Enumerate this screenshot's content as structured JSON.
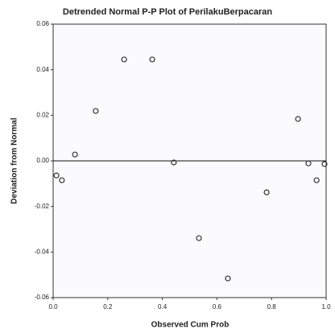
{
  "chart_data": {
    "type": "scatter",
    "title": "Detrended Normal P-P Plot of PerilakuBerpacaran",
    "x_label": "Observed Cum Prob",
    "y_label": "Deviation from Normal",
    "x": [
      0.012,
      0.032,
      0.08,
      0.156,
      0.26,
      0.363,
      0.442,
      0.534,
      0.64,
      0.782,
      0.897,
      0.935,
      0.965,
      0.994
    ],
    "values": [
      -0.0064,
      -0.0085,
      0.0028,
      0.0219,
      0.0445,
      0.0445,
      -0.0007,
      -0.0339,
      -0.0516,
      -0.0138,
      0.0184,
      -0.0011,
      -0.0085,
      -0.0014
    ],
    "color": "#333333",
    "xlim": [
      0,
      1
    ],
    "xticks": [
      {
        "value": 0,
        "label": "0.0"
      },
      0.2,
      0.4,
      0.6,
      0.8,
      {
        "value": 1,
        "label": "1.0"
      }
    ],
    "ylim": [
      -0.06,
      0.06
    ],
    "yticks": [
      -0.06,
      -0.04,
      -0.02,
      {
        "value": 0,
        "label": "0.00"
      },
      0.02,
      0.04,
      0.06
    ],
    "reference_line": 0
  }
}
